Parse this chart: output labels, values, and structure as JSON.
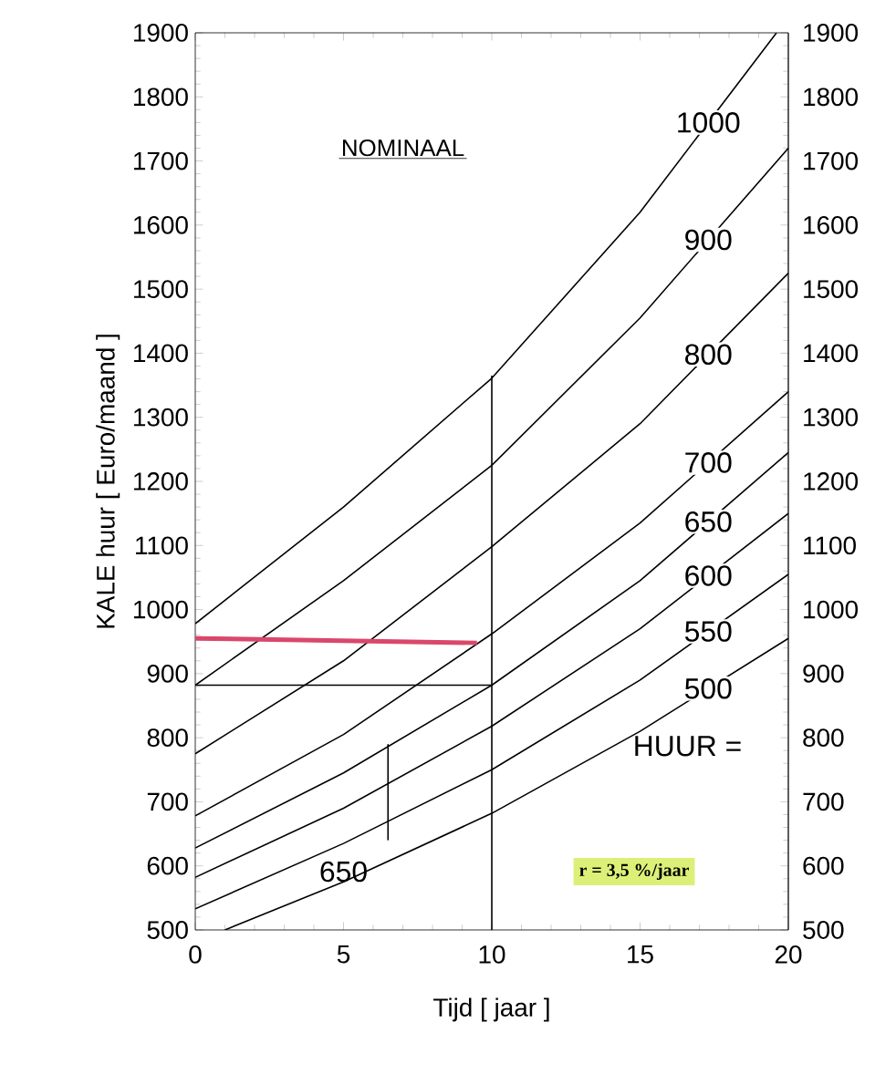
{
  "chart_data": {
    "type": "line",
    "xlabel": "Tijd [ jaar ]",
    "ylabel": "KALE huur [ Euro/maand ]",
    "xlim": [
      0,
      20
    ],
    "xticks": [
      0,
      5,
      10,
      15,
      20
    ],
    "ylim": [
      500,
      1900
    ],
    "yticks": [
      500,
      600,
      700,
      800,
      900,
      1000,
      1100,
      1200,
      1300,
      1400,
      1500,
      1600,
      1700,
      1800,
      1900
    ],
    "y2lim": [
      500,
      1900
    ],
    "y2ticks": [
      500,
      600,
      700,
      800,
      900,
      1000,
      1100,
      1200,
      1300,
      1400,
      1500,
      1600,
      1700,
      1800,
      1900
    ],
    "grid": false,
    "marker": "none",
    "line_style": "solid",
    "series": [
      {
        "name": "1000",
        "color": "#000000",
        "x": [
          0,
          5,
          10,
          15,
          19.6
        ],
        "values": [
          978,
          1160,
          1361,
          1620,
          1900
        ]
      },
      {
        "name": "900",
        "color": "#000000",
        "x": [
          0,
          5,
          10,
          15,
          20
        ],
        "values": [
          882,
          1045,
          1225,
          1455,
          1720
        ]
      },
      {
        "name": "800",
        "color": "#000000",
        "x": [
          0,
          5,
          10,
          15,
          20
        ],
        "values": [
          775,
          920,
          1098,
          1290,
          1525
        ]
      },
      {
        "name": "700",
        "color": "#000000",
        "x": [
          0,
          5,
          10,
          15,
          20
        ],
        "values": [
          678,
          805,
          962,
          1135,
          1340
        ]
      },
      {
        "name": "650",
        "color": "#000000",
        "x": [
          0,
          5,
          10,
          15,
          20
        ],
        "values": [
          628,
          745,
          882,
          1045,
          1245
        ]
      },
      {
        "name": "600",
        "color": "#000000",
        "x": [
          0,
          5,
          10,
          15,
          20
        ],
        "values": [
          582,
          690,
          818,
          970,
          1150
        ]
      },
      {
        "name": "550",
        "color": "#000000",
        "x": [
          0,
          5,
          10,
          15,
          20
        ],
        "values": [
          533,
          635,
          750,
          890,
          1055
        ]
      },
      {
        "name": "500",
        "color": "#000000",
        "x": [
          1,
          5,
          10,
          15,
          20
        ],
        "values": [
          500,
          575,
          682,
          810,
          955
        ]
      },
      {
        "color": "#d9486a",
        "x": [
          0,
          9.5
        ],
        "values": [
          955,
          948
        ]
      },
      {
        "color": "#000000",
        "x": [
          0,
          10
        ],
        "values": [
          882,
          882
        ]
      },
      {
        "color": "#000000",
        "x": [
          10,
          10
        ],
        "values": [
          1365,
          500
        ]
      },
      {
        "color": "#000000",
        "x": [
          6.5,
          6.5
        ],
        "values": [
          640,
          790
        ]
      }
    ],
    "annotations": [
      "NOMINAAL",
      "HUUR =",
      "650",
      "r = 3,5 %/jaar"
    ]
  }
}
